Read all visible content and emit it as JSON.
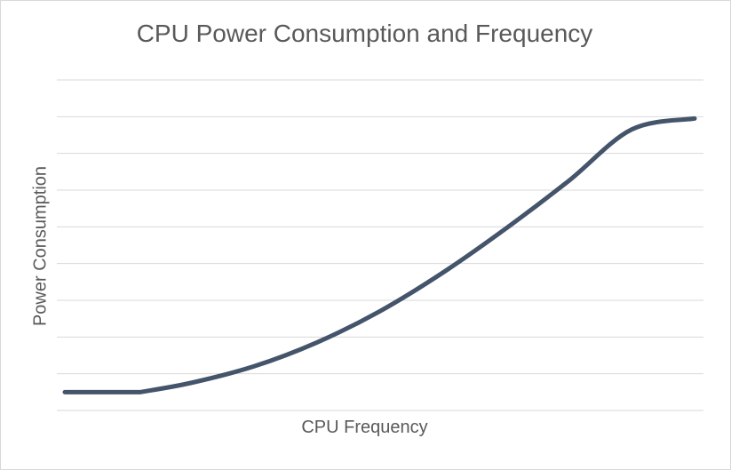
{
  "chart_data": {
    "type": "line",
    "title": "CPU Power Consumption and Frequency",
    "xlabel": "CPU Frequency",
    "ylabel": "Power Consumption",
    "grid": true,
    "legend": "none",
    "xlim": [
      0,
      10
    ],
    "ylim": [
      0,
      9
    ],
    "series": [
      {
        "x": [
          0,
          1.2,
          2,
          3,
          4,
          5,
          6,
          7,
          8,
          9,
          10
        ],
        "values": [
          0.5,
          0.5,
          0.75,
          1.2,
          1.85,
          2.7,
          3.75,
          4.95,
          6.25,
          7.65,
          7.95
        ],
        "color": "#44546a"
      }
    ]
  }
}
